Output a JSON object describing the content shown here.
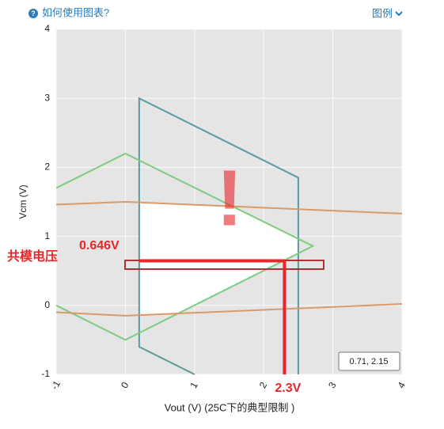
{
  "header": {
    "help": "如何使用图表?",
    "help_icon": "?",
    "legend": "图例"
  },
  "chart_data": {
    "type": "line",
    "xlabel": "Vout (V) (25C下的典型限制 )",
    "ylabel": "Vcm (V)",
    "xlim": [
      -1,
      4
    ],
    "ylim": [
      -1,
      4
    ],
    "xticks": [
      -1,
      0,
      1,
      2,
      3,
      4
    ],
    "yticks": [
      -1,
      0,
      1,
      2,
      3,
      4
    ],
    "grid": true,
    "series": [
      {
        "color": "#5b9a9c",
        "x": [
          1,
          0.2,
          0.2,
          2.5,
          2.5
        ],
        "values": [
          -1,
          -0.6,
          3,
          1.85,
          -1
        ]
      },
      {
        "color": "#7fcb7f",
        "x": [
          -1,
          0,
          2.71,
          0,
          -1
        ],
        "values": [
          1.7,
          2.2,
          0.86,
          -0.5,
          0
        ]
      },
      {
        "color": "#d99a6c",
        "x": [
          -1,
          0,
          4
        ],
        "values": [
          1.46,
          1.5,
          1.33
        ]
      },
      {
        "color": "#d99a6c",
        "x": [
          -1,
          0,
          4
        ],
        "values": [
          -0.1,
          -0.15,
          0.02
        ]
      }
    ],
    "region": {
      "color": "#ffffff",
      "x": [
        0.2,
        1.55,
        2.5,
        2.5,
        0.76,
        0.2
      ],
      "values": [
        1.49,
        1.43,
        0.965,
        0.755,
        -0.12,
        -0.14
      ]
    },
    "background": "#e5e5e5",
    "tooltip": "0.71, 2.15",
    "annotation": {
      "x": 2.3,
      "y": 0.646,
      "x_label": "2.3V",
      "y_label": "0.646V",
      "name": "共模电压",
      "alert": "!",
      "color": "#e8262b"
    }
  }
}
